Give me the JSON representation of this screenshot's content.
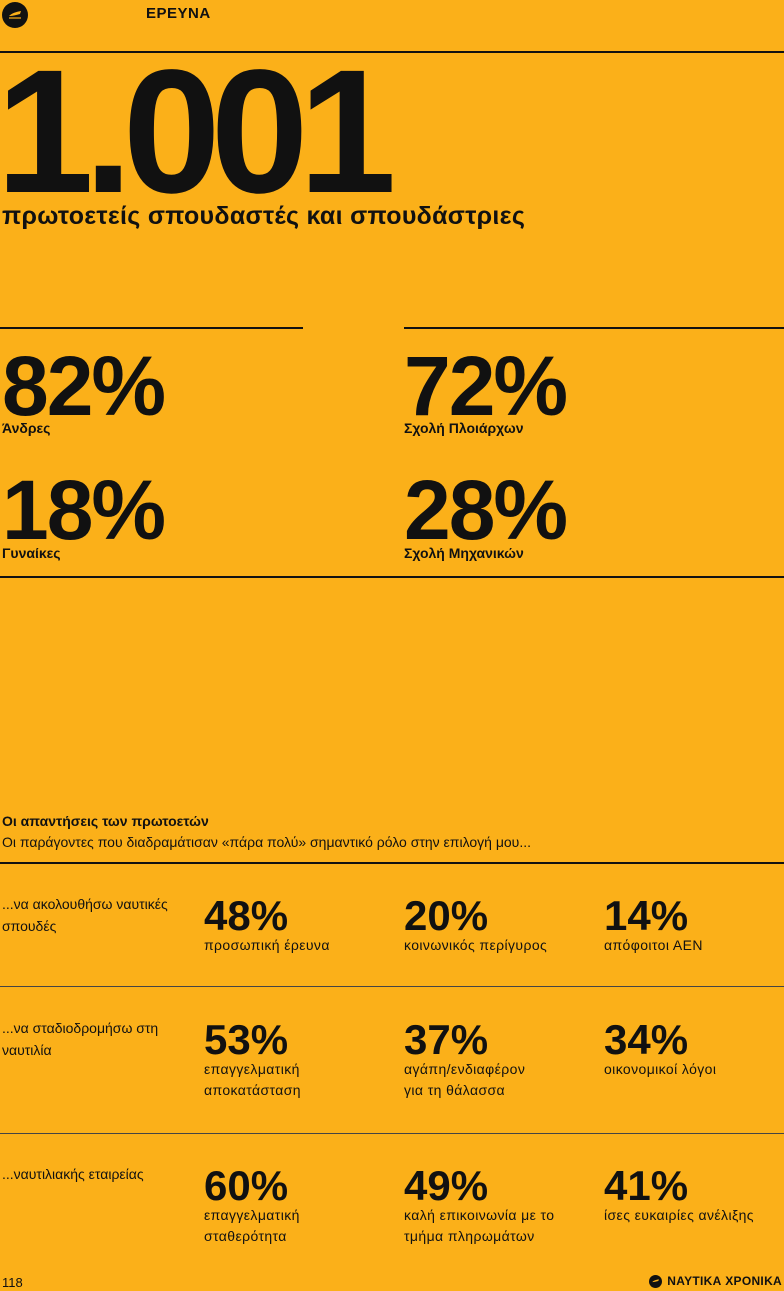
{
  "header": {
    "section": "ΕΡΕΥΝΑ",
    "logo_icon": "ship-logo-icon"
  },
  "hero": {
    "number": "1.001",
    "headline": "πρωτοετείς σπουδαστές και σπουδάστριες"
  },
  "gender": [
    {
      "value": "82%",
      "label": "Άνδρες"
    },
    {
      "value": "18%",
      "label": "Γυναίκες"
    }
  ],
  "school": [
    {
      "value": "72%",
      "label": "Σχολή Πλοιάρχων"
    },
    {
      "value": "28%",
      "label": "Σχολή Μηχανικών"
    }
  ],
  "responses": {
    "title": "Οι απαντήσεις των πρωτοετών",
    "subtitle": "Οι παράγοντες που διαδραμάτισαν «πάρα πολύ» σημαντικό ρόλο στην επιλογή μου...",
    "rows": [
      {
        "label": "...να ακολουθήσω ναυτικές σπουδές",
        "items": [
          {
            "value": "48%",
            "desc": "προσωπική έρευνα"
          },
          {
            "value": "20%",
            "desc": "κοινωνικός περίγυρος"
          },
          {
            "value": "14%",
            "desc": "απόφοιτοι ΑΕΝ"
          }
        ]
      },
      {
        "label": "...να σταδιοδρομήσω στη ναυτιλία",
        "items": [
          {
            "value": "53%",
            "desc": "επαγγελματική αποκατάσταση"
          },
          {
            "value": "37%",
            "desc": "αγάπη/ενδιαφέρον για τη θάλασσα"
          },
          {
            "value": "34%",
            "desc": "οικονομικοί λόγοι"
          }
        ]
      },
      {
        "label": "...ναυτιλιακής εταιρείας",
        "items": [
          {
            "value": "60%",
            "desc": "επαγγελματική σταθερότητα"
          },
          {
            "value": "49%",
            "desc": "καλή επικοινωνία με το τμήμα πληρωμάτων"
          },
          {
            "value": "41%",
            "desc": "ίσες ευκαιρίες ανέλιξης"
          }
        ]
      }
    ]
  },
  "footer": {
    "page": "118",
    "brand": "ΝΑΥΤΙΚΑ ΧΡΟΝΙΚΑ",
    "brand_icon": "ship-logo-icon"
  },
  "colors": {
    "background": "#FBB019",
    "text": "#111111"
  }
}
